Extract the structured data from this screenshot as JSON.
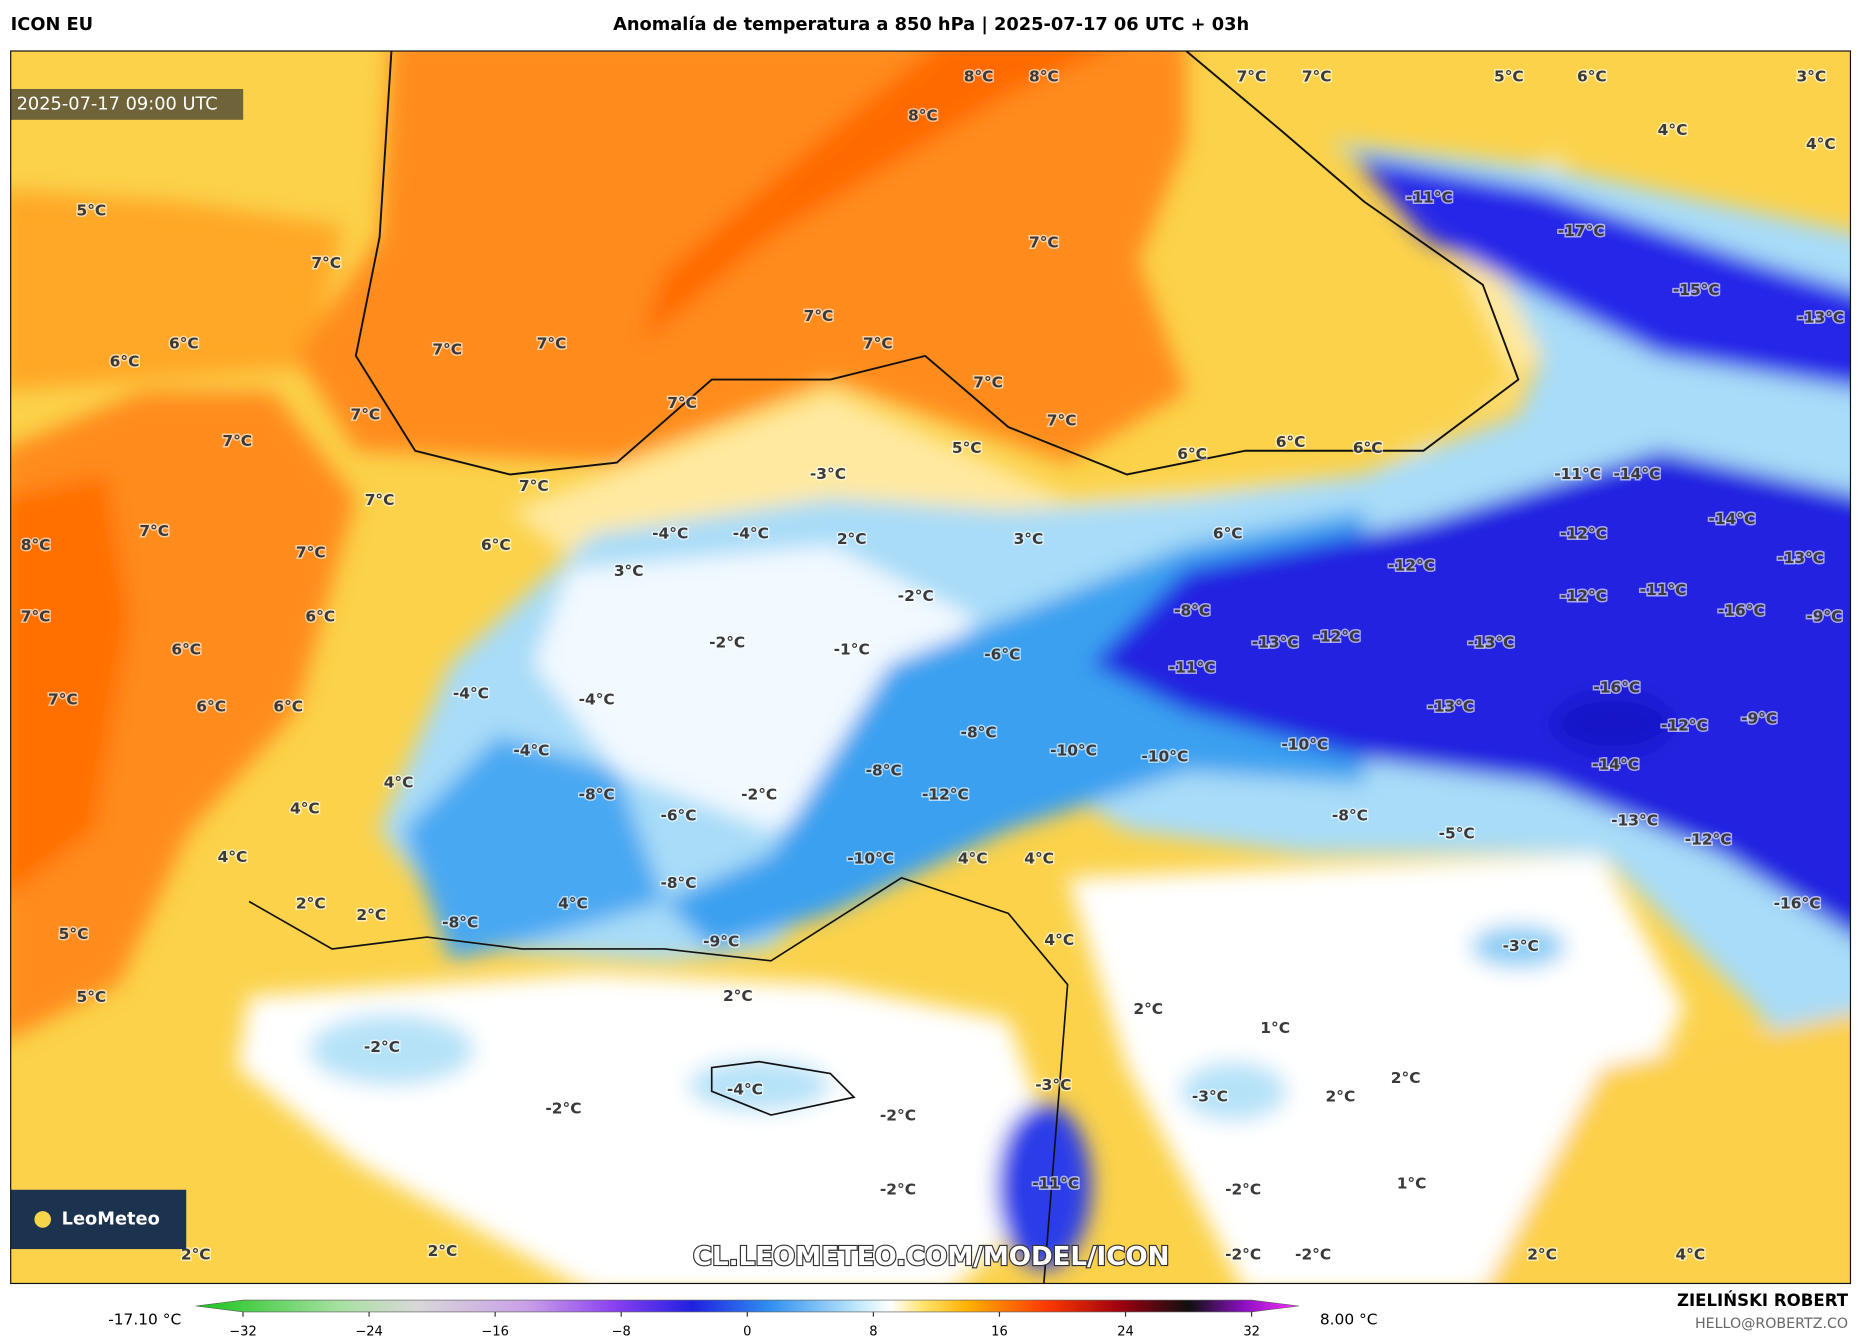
{
  "header": {
    "model": "ICON EU",
    "title": "Anomalía de temperatura a 850 hPa | 2025-07-17 06 UTC + 03h"
  },
  "map": {
    "timestamp": "2025-07-17 09:00 UTC",
    "watermark": "CL.LEOMETEO.COM/MODEL/ICON",
    "logo": "LeoMeteo",
    "labels": [
      "8°C",
      "8°C",
      "8°C",
      "7°C",
      "7°C",
      "5°C",
      "6°C",
      "3°C",
      "4°C",
      "4°C",
      "-11°C",
      "-17°C",
      "-15°C",
      "-13°C",
      "5°C",
      "7°C",
      "7°C",
      "6°C",
      "6°C",
      "7°C",
      "7°C",
      "7°C",
      "7°C",
      "7°C",
      "7°C",
      "7°C",
      "7°C",
      "7°C",
      "5°C",
      "6°C",
      "6°C",
      "6°C",
      "-11°C",
      "-14°C",
      "-3°C",
      "7°C",
      "7°C",
      "-14°C",
      "8°C",
      "7°C",
      "6°C",
      "-4°C",
      "-4°C",
      "2°C",
      "3°C",
      "6°C",
      "-12°C",
      "-13°C",
      "-12°C",
      "7°C",
      "3°C",
      "-2°C",
      "-12°C",
      "-11°C",
      "-16°C",
      "-9°C",
      "7°C",
      "6°C",
      "-8°C",
      "-2°C",
      "-1°C",
      "-13°C",
      "-12°C",
      "-13°C",
      "6°C",
      "-6°C",
      "-11°C",
      "-16°C",
      "-4°C",
      "-4°C",
      "7°C",
      "6°C",
      "6°C",
      "-13°C",
      "-12°C",
      "-9°C",
      "-8°C",
      "-4°C",
      "-10°C",
      "-10°C",
      "-10°C",
      "-8°C",
      "-14°C",
      "4°C",
      "-2°C",
      "-8°C",
      "-12°C",
      "4°C",
      "-6°C",
      "-8°C",
      "-5°C",
      "-13°C",
      "-12°C",
      "4°C",
      "-10°C",
      "4°C",
      "4°C",
      "-8°C",
      "2°C",
      "2°C",
      "4°C",
      "-16°C",
      "-8°C",
      "5°C",
      "4°C",
      "-9°C",
      "-3°C",
      "5°C",
      "2°C",
      "2°C",
      "1°C",
      "-2°C",
      "2°C",
      "-3°C",
      "-4°C",
      "2°C",
      "-3°C",
      "-2°C",
      "-2°C",
      "-11°C",
      "-2°C",
      "1°C",
      "-2°C",
      "2°C",
      "2°C",
      "-2°C",
      "-2°C",
      "2°C",
      "4°C"
    ]
  },
  "colorbar": {
    "min_label": "-17.10 °C",
    "max_label": "8.00 °C",
    "lim": [
      -35,
      35
    ],
    "ticks": [
      {
        "value": -32,
        "label": "−32"
      },
      {
        "value": -24,
        "label": "−24"
      },
      {
        "value": -16,
        "label": "−16"
      },
      {
        "value": -8,
        "label": "−8"
      },
      0,
      8,
      16,
      24,
      32
    ]
  },
  "footer": {
    "author": "ZIELIŃSKI ROBERT",
    "email": "HELLO@ROBERTZ.CO"
  }
}
